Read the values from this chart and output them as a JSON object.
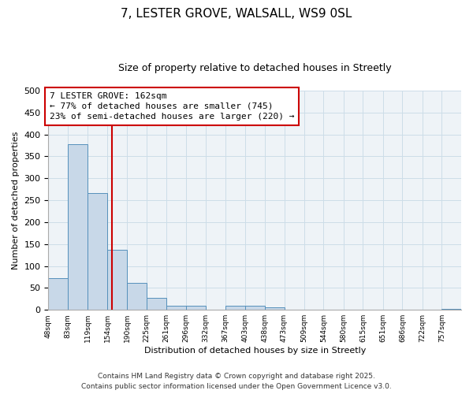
{
  "title": "7, LESTER GROVE, WALSALL, WS9 0SL",
  "subtitle": "Size of property relative to detached houses in Streetly",
  "xlabel": "Distribution of detached houses by size in Streetly",
  "ylabel": "Number of detached properties",
  "bar_edges": [
    48,
    83,
    119,
    154,
    190,
    225,
    261,
    296,
    332,
    367,
    403,
    438,
    473,
    509,
    544,
    580,
    615,
    651,
    686,
    722,
    757,
    792
  ],
  "bar_heights": [
    73,
    377,
    267,
    137,
    62,
    28,
    10,
    10,
    0,
    10,
    10,
    5,
    0,
    0,
    0,
    0,
    0,
    0,
    0,
    0,
    3,
    0
  ],
  "bar_color": "#c8d8e8",
  "bar_edge_color": "#5590bb",
  "vline_x": 162,
  "vline_color": "#cc0000",
  "annotation_line1": "7 LESTER GROVE: 162sqm",
  "annotation_line2": "← 77% of detached houses are smaller (745)",
  "annotation_line3": "23% of semi-detached houses are larger (220) →",
  "annotation_box_color": "#ffffff",
  "annotation_box_edgecolor": "#cc0000",
  "ylim": [
    0,
    500
  ],
  "tick_labels": [
    "48sqm",
    "83sqm",
    "119sqm",
    "154sqm",
    "190sqm",
    "225sqm",
    "261sqm",
    "296sqm",
    "332sqm",
    "367sqm",
    "403sqm",
    "438sqm",
    "473sqm",
    "509sqm",
    "544sqm",
    "580sqm",
    "615sqm",
    "651sqm",
    "686sqm",
    "722sqm",
    "757sqm"
  ],
  "footer1": "Contains HM Land Registry data © Crown copyright and database right 2025.",
  "footer2": "Contains public sector information licensed under the Open Government Licence v3.0.",
  "grid_color": "#ccdde8",
  "bg_color": "#eef3f7",
  "title_fontsize": 11,
  "subtitle_fontsize": 9,
  "annot_fontsize": 8,
  "footer_fontsize": 6.5,
  "ylabel_fontsize": 8,
  "xlabel_fontsize": 8
}
